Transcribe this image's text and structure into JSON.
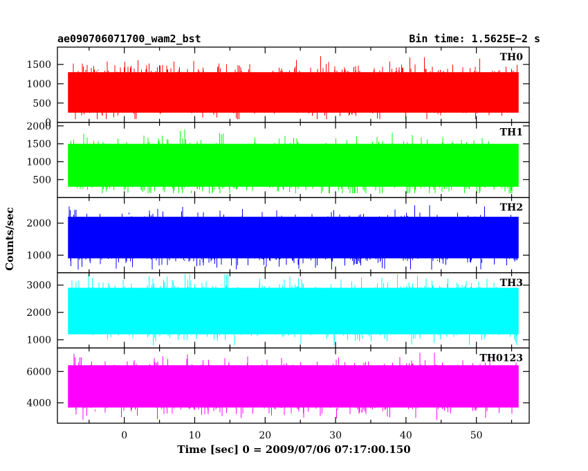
{
  "header": {
    "title": "ae090706071700_wam2_bst",
    "bin_time": "Bin time: 1.5625E−2 s"
  },
  "chart_data": {
    "type": "line",
    "title": "ae090706071700_wam2_bst",
    "xlabel": "Time [sec] 0 = 2009/07/06 07:17:00.150",
    "ylabel": "Counts/sec",
    "xlim": [
      -9.5,
      57.5
    ],
    "x_data_range": [
      -8,
      56
    ],
    "xticks": [
      0,
      10,
      20,
      30,
      40,
      50
    ],
    "xtick_labels": [
      "0",
      "10",
      "20",
      "30",
      "40",
      "50"
    ],
    "bin_time_s": 0.015625,
    "grid": false,
    "panels": [
      {
        "name": "TH0",
        "color": "#ff0000",
        "ylim": [
          0,
          1950
        ],
        "yticks": [
          0,
          500,
          1000,
          1500
        ],
        "ytick_labels": [
          "0",
          "500",
          "1000",
          "1500"
        ],
        "mean": 830,
        "typical_low": 250,
        "typical_high": 1300,
        "min": 80,
        "max": 1900
      },
      {
        "name": "TH1",
        "color": "#00ff00",
        "ylim": [
          0,
          2100
        ],
        "yticks": [
          500,
          1000,
          1500,
          2000
        ],
        "ytick_labels": [
          "500",
          "1000",
          "1500",
          "2000"
        ],
        "mean": 870,
        "typical_low": 300,
        "typical_high": 1500,
        "min": 120,
        "max": 2050
      },
      {
        "name": "TH2",
        "color": "#0000ff",
        "ylim": [
          450,
          2800
        ],
        "yticks": [
          1000,
          2000
        ],
        "ytick_labels": [
          "1000",
          "2000"
        ],
        "mean": 1500,
        "typical_low": 900,
        "typical_high": 2200,
        "min": 550,
        "max": 2800
      },
      {
        "name": "TH3",
        "color": "#00ffff",
        "ylim": [
          700,
          3450
        ],
        "yticks": [
          1000,
          2000,
          3000
        ],
        "ytick_labels": [
          "1000",
          "2000",
          "3000"
        ],
        "mean": 2100,
        "typical_low": 1200,
        "typical_high": 2900,
        "min": 800,
        "max": 3400
      },
      {
        "name": "TH0123",
        "color": "#ff00ff",
        "ylim": [
          2700,
          7500
        ],
        "yticks": [
          4000,
          6000
        ],
        "ytick_labels": [
          "4000",
          "6000"
        ],
        "mean": 5000,
        "typical_low": 3700,
        "typical_high": 6400,
        "min": 2900,
        "max": 7400
      }
    ]
  }
}
